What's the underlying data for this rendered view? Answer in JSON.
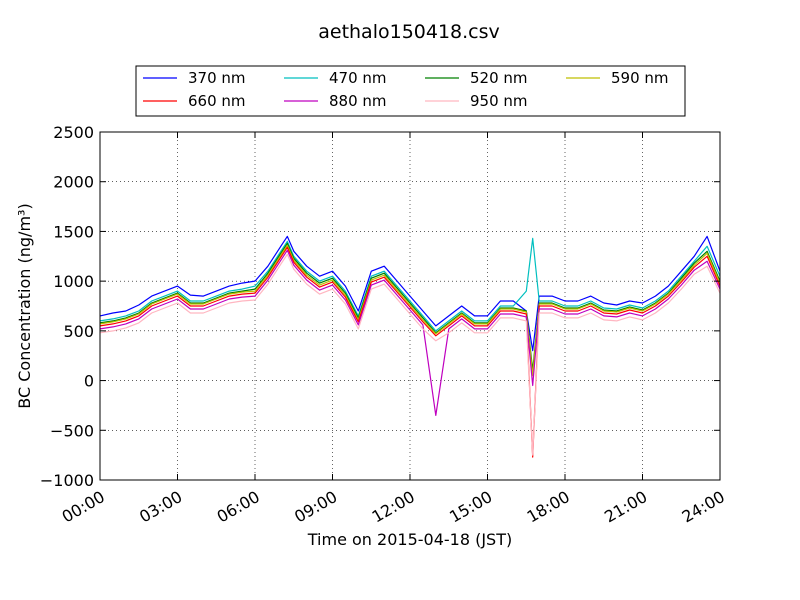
{
  "chart_data": {
    "type": "line",
    "title": "aethalo150418.csv",
    "xlabel": "Time on 2015-04-18 (JST)",
    "ylabel": "BC Concentration (ng/m³)",
    "xlim": [
      0,
      24
    ],
    "ylim": [
      -1000,
      2500
    ],
    "x_ticks": [
      0,
      3,
      6,
      9,
      12,
      15,
      18,
      21,
      24
    ],
    "x_tick_labels": [
      "00:00",
      "03:00",
      "06:00",
      "09:00",
      "12:00",
      "15:00",
      "18:00",
      "21:00",
      "24:00"
    ],
    "y_ticks": [
      -1000,
      -500,
      0,
      500,
      1000,
      1500,
      2000,
      2500
    ],
    "y_tick_labels": [
      "−1000",
      "−500",
      "0",
      "500",
      "1000",
      "1500",
      "2000",
      "2500"
    ],
    "grid": true,
    "legend_position": "top",
    "x": [
      0,
      0.5,
      1,
      1.5,
      2,
      2.5,
      3,
      3.5,
      4,
      4.5,
      5,
      5.5,
      6,
      6.5,
      7,
      7.25,
      7.5,
      8,
      8.5,
      9,
      9.5,
      10,
      10.5,
      11,
      11.5,
      12,
      12.5,
      13,
      13.5,
      14,
      14.5,
      15,
      15.5,
      16,
      16.5,
      16.75,
      17,
      17.5,
      18,
      18.5,
      19,
      19.5,
      20,
      20.5,
      21,
      21.5,
      22,
      22.5,
      23,
      23.5,
      24
    ],
    "series": [
      {
        "name": "370 nm",
        "color": "#0000ff",
        "values": [
          650,
          680,
          700,
          760,
          850,
          900,
          950,
          860,
          850,
          900,
          950,
          980,
          1000,
          1150,
          1350,
          1450,
          1300,
          1150,
          1050,
          1100,
          950,
          700,
          1100,
          1150,
          1000,
          850,
          700,
          550,
          650,
          750,
          650,
          650,
          800,
          800,
          700,
          300,
          850,
          850,
          800,
          800,
          850,
          780,
          760,
          800,
          780,
          850,
          950,
          1100,
          1250,
          1450,
          1100
        ]
      },
      {
        "name": "470 nm",
        "color": "#00bfbf",
        "values": [
          600,
          620,
          650,
          700,
          800,
          850,
          900,
          800,
          800,
          850,
          900,
          920,
          950,
          1100,
          1300,
          1400,
          1250,
          1100,
          1000,
          1050,
          900,
          650,
          1050,
          1100,
          950,
          800,
          650,
          500,
          600,
          700,
          600,
          600,
          750,
          750,
          900,
          1430,
          800,
          800,
          750,
          750,
          800,
          730,
          720,
          760,
          730,
          800,
          900,
          1050,
          1200,
          1350,
          1050
        ]
      },
      {
        "name": "520 nm",
        "color": "#008000",
        "values": [
          580,
          600,
          630,
          680,
          780,
          830,
          880,
          780,
          780,
          830,
          880,
          900,
          920,
          1080,
          1280,
          1380,
          1230,
          1080,
          980,
          1030,
          880,
          630,
          1030,
          1080,
          930,
          780,
          630,
          480,
          580,
          680,
          580,
          580,
          730,
          730,
          700,
          100,
          780,
          780,
          730,
          730,
          780,
          710,
          700,
          740,
          710,
          780,
          880,
          1030,
          1180,
          1300,
          1000
        ]
      },
      {
        "name": "590 nm",
        "color": "#bfbf00",
        "values": [
          570,
          590,
          620,
          670,
          770,
          820,
          870,
          770,
          770,
          820,
          870,
          890,
          900,
          1060,
          1260,
          1360,
          1210,
          1060,
          960,
          1010,
          860,
          610,
          1010,
          1060,
          910,
          760,
          610,
          470,
          570,
          670,
          570,
          570,
          720,
          720,
          690,
          50,
          770,
          770,
          720,
          720,
          770,
          700,
          690,
          730,
          700,
          770,
          870,
          1010,
          1160,
          1280,
          980
        ]
      },
      {
        "name": "660 nm",
        "color": "#ff0000",
        "values": [
          550,
          570,
          600,
          650,
          750,
          800,
          850,
          750,
          750,
          800,
          850,
          870,
          880,
          1040,
          1240,
          1340,
          1190,
          1040,
          940,
          990,
          840,
          590,
          990,
          1040,
          890,
          740,
          590,
          450,
          550,
          650,
          550,
          550,
          700,
          700,
          670,
          -770,
          750,
          750,
          700,
          700,
          750,
          680,
          670,
          710,
          680,
          750,
          850,
          990,
          1140,
          1250,
          950
        ]
      },
      {
        "name": "880 nm",
        "color": "#bf00bf",
        "values": [
          520,
          540,
          570,
          620,
          720,
          770,
          820,
          720,
          720,
          770,
          820,
          840,
          850,
          1010,
          1210,
          1310,
          1160,
          1010,
          910,
          960,
          810,
          560,
          960,
          1010,
          860,
          710,
          560,
          -350,
          520,
          620,
          520,
          520,
          670,
          670,
          640,
          -50,
          720,
          720,
          670,
          670,
          720,
          650,
          640,
          680,
          650,
          720,
          820,
          960,
          1110,
          1200,
          920
        ]
      },
      {
        "name": "950 nm",
        "color": "#ffb6c1",
        "values": [
          480,
          500,
          530,
          580,
          680,
          730,
          780,
          680,
          680,
          730,
          780,
          800,
          810,
          970,
          1170,
          1270,
          1120,
          970,
          870,
          920,
          770,
          520,
          920,
          970,
          820,
          670,
          520,
          400,
          480,
          580,
          480,
          480,
          630,
          630,
          600,
          -750,
          680,
          680,
          630,
          630,
          680,
          610,
          600,
          640,
          610,
          680,
          780,
          920,
          1070,
          1150,
          880
        ]
      }
    ]
  }
}
